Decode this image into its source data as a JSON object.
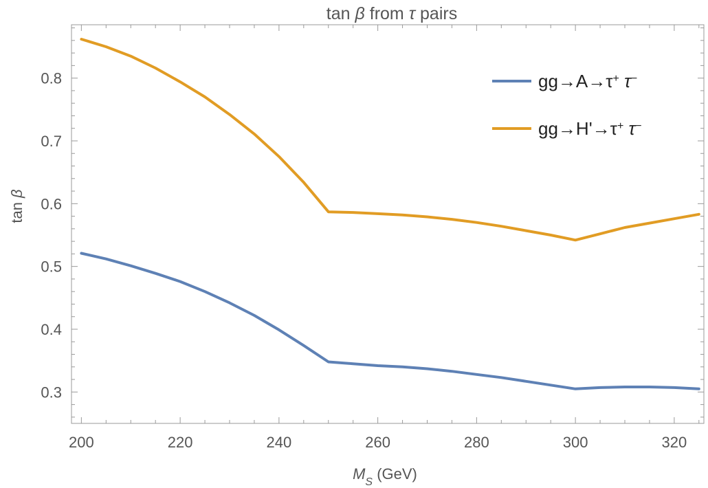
{
  "chart_data": {
    "type": "line",
    "title": {
      "prefix": "tan ",
      "beta": "β",
      "middle": " from ",
      "tau": "τ",
      "suffix": " pairs"
    },
    "xlabel": {
      "symbol": "M",
      "subscript": "S",
      "unit": " (GeV)"
    },
    "ylabel": {
      "prefix": "tan ",
      "beta": "β"
    },
    "xlim": [
      198,
      326
    ],
    "ylim": [
      0.25,
      0.885
    ],
    "xticks": [
      200,
      220,
      240,
      260,
      280,
      300,
      320
    ],
    "xtick_labels": [
      "200",
      "220",
      "240",
      "260",
      "280",
      "300",
      "320"
    ],
    "yticks": [
      0.3,
      0.4,
      0.5,
      0.6,
      0.7,
      0.8
    ],
    "ytick_labels": [
      "0.3",
      "0.4",
      "0.5",
      "0.6",
      "0.7",
      "0.8"
    ],
    "grid": false,
    "frame_ticks": true,
    "legend_position": "top-right",
    "series": [
      {
        "label_parts": {
          "main": "gg→A→τ",
          "sup1": "+",
          "mid": " τ",
          "sup2": "−"
        },
        "color": "#5E81B5",
        "x": [
          200,
          205,
          210,
          215,
          220,
          225,
          230,
          235,
          240,
          245,
          250,
          255,
          260,
          265,
          270,
          275,
          280,
          285,
          290,
          295,
          300,
          305,
          310,
          315,
          320,
          325
        ],
        "y": [
          0.521,
          0.512,
          0.501,
          0.489,
          0.476,
          0.46,
          0.442,
          0.422,
          0.399,
          0.374,
          0.348,
          0.345,
          0.342,
          0.34,
          0.337,
          0.333,
          0.328,
          0.323,
          0.317,
          0.311,
          0.305,
          0.307,
          0.308,
          0.308,
          0.307,
          0.305
        ]
      },
      {
        "label_parts": {
          "main": "gg→H'→τ",
          "sup1": "+",
          "mid": " τ",
          "sup2": "−"
        },
        "color": "#E19C24",
        "x": [
          200,
          205,
          210,
          215,
          220,
          225,
          230,
          235,
          240,
          245,
          250,
          255,
          260,
          265,
          270,
          275,
          280,
          285,
          290,
          295,
          300,
          305,
          310,
          315,
          320,
          325
        ],
        "y": [
          0.862,
          0.85,
          0.835,
          0.816,
          0.794,
          0.77,
          0.742,
          0.711,
          0.675,
          0.634,
          0.587,
          0.586,
          0.584,
          0.582,
          0.579,
          0.575,
          0.57,
          0.564,
          0.557,
          0.55,
          0.542,
          0.552,
          0.562,
          0.569,
          0.576,
          0.583
        ]
      }
    ]
  }
}
